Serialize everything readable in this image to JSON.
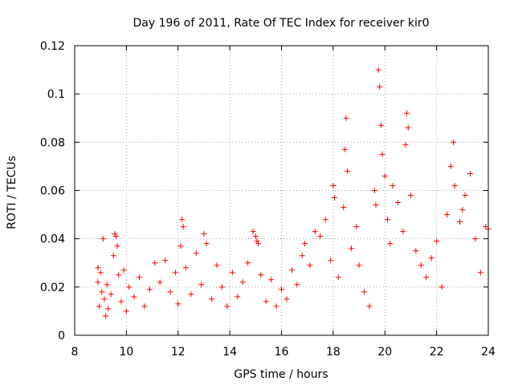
{
  "chart_data": {
    "type": "scatter",
    "title": "Day 196 of 2011, Rate Of TEC Index for receiver kir0",
    "xlabel": "GPS time / hours",
    "ylabel": "ROTI / TECUs",
    "xlim": [
      8,
      24
    ],
    "ylim": [
      0,
      0.12
    ],
    "x_ticks": [
      "8",
      "10",
      "12",
      "14",
      "16",
      "18",
      "20",
      "22",
      "24"
    ],
    "y_ticks": [
      "0",
      "0.02",
      "0.04",
      "0.06",
      "0.08",
      "0.1",
      "0.12"
    ],
    "grid": true,
    "marker": "+",
    "marker_color": "#ff0000",
    "series": [
      {
        "name": "ROTI",
        "points": [
          [
            8.9,
            0.028
          ],
          [
            8.9,
            0.022
          ],
          [
            8.95,
            0.012
          ],
          [
            9.0,
            0.026
          ],
          [
            9.05,
            0.018
          ],
          [
            9.1,
            0.04
          ],
          [
            9.15,
            0.015
          ],
          [
            9.2,
            0.008
          ],
          [
            9.25,
            0.021
          ],
          [
            9.3,
            0.011
          ],
          [
            9.4,
            0.017
          ],
          [
            9.5,
            0.033
          ],
          [
            9.55,
            0.042
          ],
          [
            9.6,
            0.041
          ],
          [
            9.65,
            0.037
          ],
          [
            9.7,
            0.025
          ],
          [
            9.8,
            0.014
          ],
          [
            9.9,
            0.027
          ],
          [
            10.0,
            0.01
          ],
          [
            10.1,
            0.02
          ],
          [
            10.3,
            0.016
          ],
          [
            10.5,
            0.024
          ],
          [
            10.7,
            0.012
          ],
          [
            10.9,
            0.019
          ],
          [
            11.1,
            0.03
          ],
          [
            11.3,
            0.022
          ],
          [
            11.5,
            0.031
          ],
          [
            11.7,
            0.018
          ],
          [
            11.9,
            0.026
          ],
          [
            12.0,
            0.013
          ],
          [
            12.1,
            0.037
          ],
          [
            12.15,
            0.048
          ],
          [
            12.2,
            0.045
          ],
          [
            12.3,
            0.028
          ],
          [
            12.5,
            0.017
          ],
          [
            12.7,
            0.034
          ],
          [
            12.9,
            0.021
          ],
          [
            13.0,
            0.042
          ],
          [
            13.1,
            0.038
          ],
          [
            13.3,
            0.015
          ],
          [
            13.5,
            0.029
          ],
          [
            13.7,
            0.02
          ],
          [
            13.9,
            0.012
          ],
          [
            14.1,
            0.026
          ],
          [
            14.3,
            0.016
          ],
          [
            14.5,
            0.022
          ],
          [
            14.7,
            0.03
          ],
          [
            14.9,
            0.043
          ],
          [
            15.0,
            0.041
          ],
          [
            15.05,
            0.039
          ],
          [
            15.1,
            0.038
          ],
          [
            15.2,
            0.025
          ],
          [
            15.4,
            0.014
          ],
          [
            15.6,
            0.023
          ],
          [
            15.8,
            0.012
          ],
          [
            16.0,
            0.019
          ],
          [
            16.2,
            0.015
          ],
          [
            16.4,
            0.027
          ],
          [
            16.6,
            0.021
          ],
          [
            16.8,
            0.033
          ],
          [
            16.9,
            0.038
          ],
          [
            17.1,
            0.029
          ],
          [
            17.3,
            0.043
          ],
          [
            17.5,
            0.041
          ],
          [
            17.7,
            0.048
          ],
          [
            17.9,
            0.031
          ],
          [
            18.0,
            0.062
          ],
          [
            18.05,
            0.057
          ],
          [
            18.2,
            0.024
          ],
          [
            18.4,
            0.053
          ],
          [
            18.45,
            0.077
          ],
          [
            18.5,
            0.09
          ],
          [
            18.55,
            0.068
          ],
          [
            18.7,
            0.036
          ],
          [
            18.9,
            0.045
          ],
          [
            19.0,
            0.029
          ],
          [
            19.2,
            0.018
          ],
          [
            19.4,
            0.012
          ],
          [
            19.6,
            0.06
          ],
          [
            19.65,
            0.054
          ],
          [
            19.75,
            0.11
          ],
          [
            19.8,
            0.103
          ],
          [
            19.85,
            0.087
          ],
          [
            19.9,
            0.075
          ],
          [
            20.0,
            0.066
          ],
          [
            20.1,
            0.048
          ],
          [
            20.2,
            0.038
          ],
          [
            20.3,
            0.062
          ],
          [
            20.5,
            0.055
          ],
          [
            20.7,
            0.043
          ],
          [
            20.8,
            0.079
          ],
          [
            20.85,
            0.092
          ],
          [
            20.9,
            0.086
          ],
          [
            21.0,
            0.058
          ],
          [
            21.2,
            0.035
          ],
          [
            21.4,
            0.029
          ],
          [
            21.6,
            0.024
          ],
          [
            21.8,
            0.032
          ],
          [
            22.0,
            0.039
          ],
          [
            22.2,
            0.02
          ],
          [
            22.4,
            0.05
          ],
          [
            22.55,
            0.07
          ],
          [
            22.65,
            0.08
          ],
          [
            22.7,
            0.062
          ],
          [
            22.9,
            0.047
          ],
          [
            23.0,
            0.052
          ],
          [
            23.1,
            0.058
          ],
          [
            23.3,
            0.067
          ],
          [
            23.5,
            0.04
          ],
          [
            23.7,
            0.026
          ],
          [
            23.9,
            0.045
          ],
          [
            24.0,
            0.044
          ]
        ]
      }
    ]
  }
}
